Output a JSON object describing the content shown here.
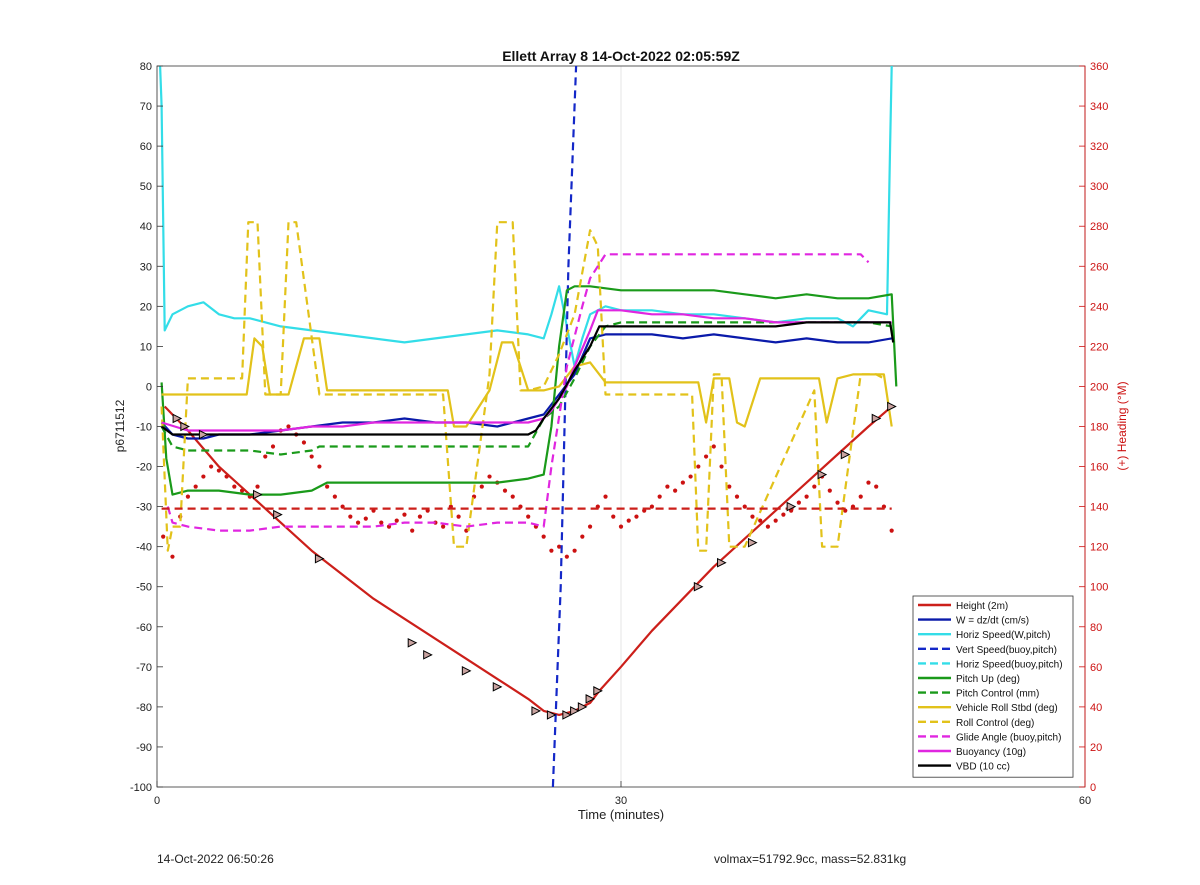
{
  "chart_data": {
    "type": "line",
    "title": "Ellett Array 8 14-Oct-2022 02:05:59Z",
    "xlabel": "Time (minutes)",
    "ylabel": "p6711512",
    "y2label": "(+) Heading (°M)",
    "xlim": [
      0,
      60
    ],
    "ylim": [
      -100,
      80
    ],
    "y2lim": [
      0,
      360
    ],
    "xticks": [
      0,
      30,
      60
    ],
    "yticks": [
      -100,
      -90,
      -80,
      -70,
      -60,
      -50,
      -40,
      -30,
      -20,
      -10,
      0,
      10,
      20,
      30,
      40,
      50,
      60,
      70,
      80
    ],
    "y2ticks": [
      0,
      20,
      40,
      60,
      80,
      100,
      120,
      140,
      160,
      180,
      200,
      220,
      240,
      260,
      280,
      300,
      320,
      340,
      360
    ],
    "grid": true,
    "legend_position": "bottom-right",
    "colors": {
      "left_axis": "#222222",
      "right_axis": "#cc1111",
      "grid": "#e0e0e0"
    },
    "series": [
      {
        "name": "Height (2m)",
        "color": "#cc1f1a",
        "style": "solid",
        "axis": "left",
        "x": [
          0.5,
          2,
          4,
          6,
          8,
          10,
          12,
          14,
          16,
          18,
          20,
          22,
          24,
          25,
          26,
          27,
          28,
          28.6,
          30,
          32,
          34,
          36,
          38,
          40,
          42,
          44,
          46,
          47.5
        ],
        "y": [
          -5,
          -11,
          -20,
          -27,
          -34,
          -41,
          -47,
          -53,
          -58,
          -63,
          -68,
          -73,
          -78,
          -81,
          -82,
          -81,
          -79,
          -76,
          -70,
          -61,
          -53,
          -45,
          -38,
          -31,
          -24,
          -17,
          -10,
          -5
        ]
      },
      {
        "name": "W = dz/dt (cm/s)",
        "color": "#0a1aaa",
        "style": "solid",
        "axis": "left",
        "x": [
          0.3,
          1,
          2,
          3,
          4,
          6,
          8,
          10,
          12,
          14,
          16,
          18,
          20,
          22,
          24,
          25,
          26,
          27,
          28,
          29,
          30,
          32,
          34,
          36,
          38,
          40,
          42,
          44,
          46,
          47.5
        ],
        "y": [
          -9,
          -12,
          -13,
          -13,
          -12,
          -12,
          -11,
          -10,
          -9,
          -9,
          -8,
          -9,
          -9,
          -10,
          -8,
          -7,
          -2,
          3,
          12,
          13,
          13,
          13,
          12,
          13,
          12,
          11,
          12,
          11,
          11,
          12
        ]
      },
      {
        "name": "Horiz Speed(W,pitch)",
        "color": "#33dde8",
        "style": "solid",
        "axis": "left",
        "x": [
          0.2,
          0.3,
          0.5,
          1,
          2,
          3,
          4,
          5,
          6,
          8,
          10,
          12,
          14,
          16,
          18,
          20,
          22,
          24,
          25,
          25.5,
          26,
          26.5,
          27,
          27.5,
          28,
          29,
          30,
          32,
          34,
          36,
          38,
          40,
          42,
          44,
          45,
          46,
          47.2,
          47.4,
          47.5
        ],
        "y": [
          80,
          70,
          14,
          18,
          20,
          21,
          18,
          17,
          17,
          15,
          14,
          13,
          12,
          11,
          12,
          13,
          14,
          13,
          12,
          18,
          25,
          15,
          5,
          12,
          18,
          20,
          19,
          19,
          18,
          18,
          17,
          16,
          17,
          17,
          15,
          19,
          18,
          60,
          80
        ]
      },
      {
        "name": "Vert Speed(buoy,pitch)",
        "color": "#1428c8",
        "style": "dashed",
        "axis": "left",
        "x": [
          25.6,
          26.1,
          26.6,
          27.1
        ],
        "y": [
          -100,
          -50,
          30,
          80
        ]
      },
      {
        "name": "Horiz Speed(buoy,pitch)",
        "color": "#33dde8",
        "style": "dashed",
        "axis": "left",
        "x": [],
        "y": []
      },
      {
        "name": "Pitch Up (deg)",
        "color": "#1a9a1a",
        "style": "solid",
        "axis": "left",
        "x": [
          0.3,
          0.6,
          1,
          2,
          4,
          6,
          8,
          10,
          11,
          12,
          14,
          16,
          18,
          20,
          22,
          24,
          25,
          25.5,
          26,
          26.5,
          27,
          28,
          30,
          32,
          34,
          36,
          38,
          40,
          42,
          44,
          46,
          47.5,
          47.8
        ],
        "y": [
          1,
          -18,
          -27,
          -26,
          -26,
          -27,
          -27,
          -26,
          -24,
          -24,
          -24,
          -24,
          -24,
          -24,
          -24,
          -23,
          -22,
          -10,
          10,
          24,
          25,
          25,
          24,
          24,
          24,
          24,
          23,
          22,
          23,
          22,
          22,
          23,
          0
        ]
      },
      {
        "name": "Pitch Control (mm)",
        "color": "#1a9a1a",
        "style": "dashed",
        "axis": "left",
        "x": [
          0.3,
          1,
          2,
          4,
          6,
          8,
          10,
          10.5,
          12,
          14,
          16,
          18,
          20,
          22,
          24,
          25,
          26,
          27,
          28,
          29,
          30,
          32,
          34,
          36,
          38,
          40,
          42,
          44,
          46,
          47.5
        ],
        "y": [
          -10,
          -15,
          -16,
          -16,
          -16,
          -17,
          -16,
          -15,
          -15,
          -15,
          -15,
          -15,
          -15,
          -15,
          -15,
          -8,
          -5,
          2,
          10,
          15,
          16,
          16,
          16,
          16,
          16,
          16,
          16,
          16,
          16,
          15
        ]
      },
      {
        "name": "Vehicle Roll Stbd (deg)",
        "color": "#e2c21a",
        "style": "solid",
        "axis": "left",
        "x": [
          0.3,
          1,
          2,
          4,
          5,
          5.8,
          6.3,
          6.8,
          7.3,
          8.5,
          9.5,
          10.5,
          11,
          14,
          16,
          18,
          18.8,
          19.2,
          20,
          21.5,
          22.3,
          23,
          24,
          25,
          26,
          27,
          28,
          29,
          30,
          32,
          34,
          35,
          35.5,
          36,
          37,
          37.5,
          38,
          39,
          40,
          42,
          42.8,
          43.3,
          44,
          45,
          46,
          47,
          47.5
        ],
        "y": [
          -2,
          -2,
          -2,
          -2,
          -2,
          -2,
          12,
          10,
          -2,
          -2,
          12,
          12,
          -1,
          -1,
          -1,
          -1,
          -1,
          -10,
          -10,
          -1,
          11,
          11,
          -1,
          -1,
          0,
          5,
          6,
          1,
          1,
          1,
          1,
          1,
          -9,
          2,
          2,
          -9,
          -10,
          2,
          2,
          2,
          2,
          -9,
          2,
          3,
          3,
          3,
          -10
        ]
      },
      {
        "name": "Roll Control (deg)",
        "color": "#e2c21a",
        "style": "dashed",
        "axis": "left",
        "x": [
          0.3,
          0.7,
          1,
          1.5,
          2,
          4,
          5.5,
          5.9,
          6.5,
          7,
          8,
          8.5,
          9,
          10.5,
          11,
          14,
          18.5,
          19.2,
          20,
          21.5,
          22,
          23,
          23.5,
          24,
          25,
          26,
          27,
          28,
          28.5,
          29,
          30,
          32,
          34.6,
          35,
          35.5,
          36,
          36.5,
          37,
          38,
          42.5,
          43,
          44,
          45.5,
          46.5,
          47
        ],
        "y": [
          -5,
          -41,
          -35,
          -35,
          2,
          2,
          2,
          41,
          41,
          -2,
          -2,
          41,
          41,
          -2,
          -2,
          -2,
          -2,
          -40,
          -40,
          3,
          41,
          41,
          -1,
          -1,
          0,
          8,
          18,
          39,
          35,
          -2,
          -2,
          -2,
          -2,
          -41,
          -41,
          3,
          3,
          -40,
          -40,
          -1,
          -40,
          -40,
          3,
          3,
          2
        ]
      },
      {
        "name": "Glide Angle (buoy,pitch)",
        "color": "#e026e0",
        "style": "dashed",
        "axis": "left",
        "x": [
          0.7,
          1,
          2,
          4,
          6,
          8,
          10,
          12,
          14,
          16,
          18,
          20,
          22,
          24,
          25,
          25.5,
          26.5,
          27.5,
          28,
          29,
          30,
          32,
          34,
          36,
          38,
          40,
          42,
          44,
          45.5,
          46
        ],
        "y": [
          -30,
          -34,
          -35,
          -36,
          -36,
          -35,
          -35,
          -35,
          -35,
          -34,
          -34,
          -35,
          -34,
          -34,
          -35,
          -20,
          5,
          20,
          27,
          33,
          33,
          33,
          33,
          33,
          33,
          33,
          33,
          33,
          33,
          31
        ]
      },
      {
        "name": "Buoyancy (10g)",
        "color": "#e026e0",
        "style": "solid",
        "axis": "left",
        "x": [
          0.3,
          2,
          4,
          6,
          8,
          10,
          12,
          14,
          16,
          18,
          20,
          22,
          24,
          25,
          25.5,
          26,
          26.5,
          27,
          28,
          28.5,
          30,
          32,
          34,
          36,
          38,
          40,
          42,
          44,
          46,
          47.5
        ],
        "y": [
          -9,
          -11,
          -11,
          -11,
          -11,
          -10,
          -10,
          -9,
          -9,
          -9,
          -9,
          -9,
          -9,
          -8,
          -6,
          -3,
          0,
          5,
          14,
          19,
          19,
          18,
          18,
          17,
          17,
          16,
          16,
          16,
          16,
          16
        ]
      },
      {
        "name": "VBD (10 cc)",
        "color": "#000000",
        "style": "solid",
        "axis": "left",
        "x": [
          0.3,
          1,
          2,
          4,
          6,
          8,
          10,
          12,
          14,
          16,
          18,
          20,
          22,
          24,
          24.5,
          25,
          26,
          27,
          28,
          28.6,
          30,
          32,
          34,
          36,
          38,
          40,
          42,
          44,
          46,
          47.4,
          47.6
        ],
        "y": [
          -10,
          -12,
          -12,
          -12,
          -12,
          -12,
          -12,
          -12,
          -12,
          -12,
          -12,
          -12,
          -12,
          -12,
          -11,
          -8,
          -3,
          4,
          10,
          15,
          15,
          15,
          15,
          15,
          15,
          15,
          16,
          16,
          16,
          16,
          11
        ]
      },
      {
        "name": "Heading reference",
        "color": "#cc1f1a",
        "style": "dashed",
        "axis": "right",
        "x": [
          0.3,
          47.5
        ],
        "y": [
          139,
          139
        ]
      },
      {
        "name": "Heading",
        "color": "#cc1111",
        "style": "dots",
        "axis": "right",
        "x": [
          0.4,
          1.0,
          1.5,
          2.0,
          2.5,
          3.0,
          3.5,
          4.0,
          4.5,
          5.0,
          5.5,
          6.0,
          6.5,
          7.0,
          7.5,
          8.0,
          8.5,
          9.0,
          9.5,
          10.0,
          10.5,
          11.0,
          11.5,
          12.0,
          12.5,
          13.0,
          13.5,
          14.0,
          14.5,
          15.0,
          15.5,
          16.0,
          16.5,
          17.0,
          17.5,
          18.0,
          18.5,
          19.0,
          19.5,
          20.0,
          20.5,
          21.0,
          21.5,
          22.0,
          22.5,
          23.0,
          23.5,
          24.0,
          24.5,
          25.0,
          25.5,
          26.0,
          26.5,
          27.0,
          27.5,
          28.0,
          28.5,
          29.0,
          29.5,
          30.0,
          30.5,
          31.0,
          31.5,
          32.0,
          32.5,
          33.0,
          33.5,
          34.0,
          34.5,
          35.0,
          35.5,
          36.0,
          36.5,
          37.0,
          37.5,
          38.0,
          38.5,
          39.0,
          39.5,
          40.0,
          40.5,
          41.0,
          41.5,
          42.0,
          42.5,
          43.0,
          43.5,
          44.0,
          44.5,
          45.0,
          45.5,
          46.0,
          46.5,
          47.0,
          47.5
        ],
        "y": [
          125,
          115,
          135,
          145,
          150,
          155,
          160,
          158,
          155,
          150,
          148,
          145,
          150,
          165,
          170,
          178,
          180,
          176,
          172,
          165,
          160,
          150,
          145,
          140,
          135,
          132,
          134,
          138,
          132,
          130,
          133,
          136,
          128,
          135,
          138,
          132,
          130,
          140,
          135,
          128,
          145,
          150,
          155,
          152,
          148,
          145,
          140,
          135,
          130,
          125,
          118,
          120,
          115,
          118,
          125,
          130,
          140,
          145,
          135,
          130,
          133,
          135,
          138,
          140,
          145,
          150,
          148,
          152,
          155,
          160,
          165,
          170,
          160,
          150,
          145,
          140,
          135,
          133,
          130,
          133,
          136,
          138,
          142,
          145,
          150,
          155,
          148,
          142,
          138,
          140,
          145,
          152,
          150,
          140,
          128
        ]
      },
      {
        "name": "Height markers",
        "color": "#000000",
        "style": "triangles",
        "axis": "left",
        "x": [
          1.3,
          1.8,
          3.0,
          6.5,
          7.8,
          10.5,
          16.5,
          17.5,
          20,
          22,
          24.5,
          25.5,
          26.5,
          27,
          27.5,
          28,
          28.5,
          35,
          36.5,
          38.5,
          41,
          43,
          44.5,
          46.5,
          47.5
        ],
        "y": [
          -8,
          -10,
          -12,
          -27,
          -32,
          -43,
          -64,
          -67,
          -71,
          -75,
          -81,
          -82,
          -82,
          -81,
          -80,
          -78,
          -76,
          -50,
          -44,
          -39,
          -30,
          -22,
          -17,
          -8,
          -5
        ]
      }
    ]
  },
  "footer": {
    "timestamp": "14-Oct-2022 06:50:26",
    "vehicle_info": "volmax=51792.9cc, mass=52.831kg"
  }
}
